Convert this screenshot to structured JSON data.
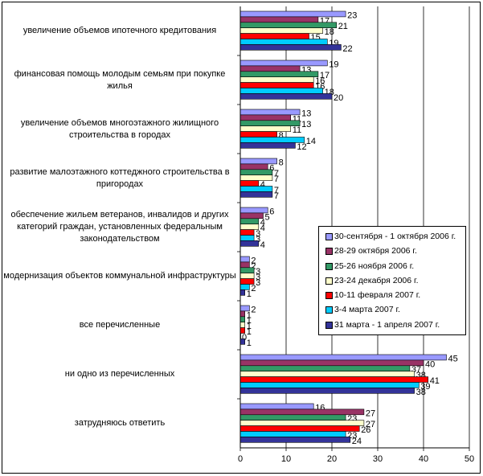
{
  "chart_data": {
    "type": "bar",
    "orientation": "horizontal",
    "title": "",
    "xlabel": "",
    "ylabel": "",
    "xlim": [
      0,
      50
    ],
    "xticks": [
      0,
      10,
      20,
      30,
      40,
      50
    ],
    "grid": true,
    "legend_position": "right",
    "categories": [
      "увеличение объемов ипотечного кредитования",
      "финансовая помощь молодым семьям при покупке жилья",
      "увеличение объемов многоэтажного жилищного строительства в городах",
      "развитие малоэтажного коттеджного строительства в пригородах",
      "обеспечение жильем ветеранов, инвалидов и других категорий граждан, установленных федеральным законодательством",
      "модернизация объектов коммунальной инфраструктуры",
      "все перечисленные",
      "ни одно из перечисленных",
      "затрудняюсь ответить"
    ],
    "series": [
      {
        "name": "30-сентября - 1 октября 2006 г.",
        "color": "#9999ff",
        "values": [
          23,
          19,
          13,
          8,
          6,
          2,
          2,
          45,
          16
        ]
      },
      {
        "name": "28-29 октября 2006 г.",
        "color": "#993366",
        "values": [
          17,
          13,
          11,
          6,
          5,
          2,
          1,
          40,
          27
        ]
      },
      {
        "name": "25-26 ноября 2006 г.",
        "color": "#339966",
        "values": [
          21,
          17,
          13,
          7,
          4,
          3,
          1,
          37,
          23
        ]
      },
      {
        "name": "23-24 декабря 2006 г.",
        "color": "#ffffcc",
        "values": [
          18,
          16,
          11,
          7,
          4,
          3,
          1,
          38,
          27
        ]
      },
      {
        "name": "10-11 февраля 2007 г.",
        "color": "#ff0000",
        "values": [
          15,
          16,
          8,
          4,
          3,
          3,
          1,
          41,
          26
        ]
      },
      {
        "name": "3-4 марта 2007 г.",
        "color": "#00ccff",
        "values": [
          19,
          18,
          14,
          7,
          3,
          2,
          0,
          39,
          23
        ]
      },
      {
        "name": "31 марта - 1 апреля 2007 г.",
        "color": "#333399",
        "values": [
          22,
          20,
          12,
          7,
          4,
          1,
          1,
          38,
          24
        ]
      }
    ]
  }
}
